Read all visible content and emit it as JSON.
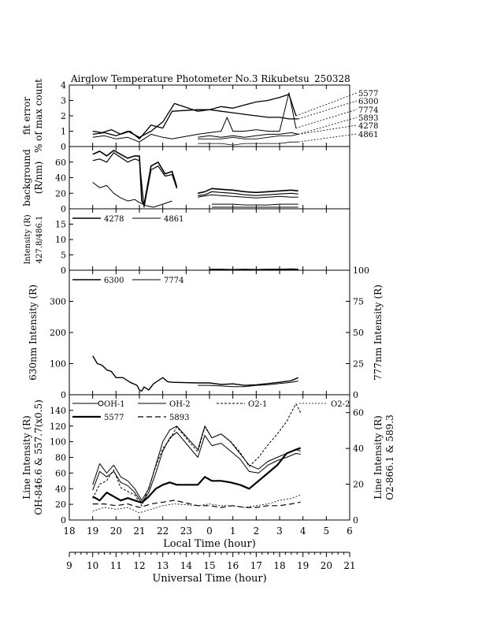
{
  "title": {
    "main": "Airglow Temperature Photometer No.3  Rikubetsu",
    "date": "250328"
  },
  "chart_data": [
    {
      "id": "fit",
      "type": "line",
      "ylabel": [
        "fit error",
        "% of max count"
      ],
      "ylim": [
        0,
        4
      ],
      "yticks": [
        0,
        1,
        2,
        3,
        4
      ],
      "legend": [
        "5577",
        "6300",
        "7774",
        "5893",
        "4278",
        "4861"
      ],
      "series": [
        {
          "name": "5577",
          "width": 1.3,
          "dash": "",
          "x": [
            19.0,
            19.4,
            19.8,
            20.2,
            20.6,
            21.0,
            21.5,
            22.0,
            22.4,
            23.5,
            0.0,
            0.5,
            1.0,
            1.5,
            2.0,
            2.5,
            3.0,
            3.4,
            3.7
          ],
          "y": [
            1.0,
            0.9,
            1.1,
            0.8,
            1.0,
            0.5,
            1.4,
            1.2,
            2.3,
            2.4,
            2.4,
            2.6,
            2.5,
            2.7,
            2.9,
            3.0,
            3.2,
            3.4,
            2.0
          ]
        },
        {
          "name": "6300",
          "width": 1.3,
          "dash": "",
          "x": [
            19.0,
            19.5,
            20.0,
            20.5,
            21.0,
            21.5,
            22.0,
            22.5,
            23.5,
            0.0,
            0.5,
            1.0,
            1.5,
            2.0,
            2.5,
            3.0,
            3.4,
            3.8
          ],
          "y": [
            0.8,
            0.9,
            0.7,
            1.0,
            0.6,
            1.0,
            1.6,
            2.8,
            2.3,
            2.4,
            2.3,
            2.2,
            2.1,
            2.0,
            1.9,
            1.9,
            1.8,
            1.8
          ]
        },
        {
          "name": "7774",
          "width": 1.0,
          "dash": "",
          "x": [
            19.0,
            19.5,
            20.0,
            20.5,
            21.0,
            21.5,
            22.0,
            22.4,
            23.5,
            0.0,
            0.5,
            0.75,
            1.0,
            1.5,
            2.0,
            2.5,
            3.0,
            3.4,
            3.7
          ],
          "y": [
            0.6,
            0.7,
            0.5,
            0.6,
            0.3,
            0.8,
            0.6,
            0.5,
            0.8,
            0.9,
            1.0,
            1.9,
            1.0,
            1.0,
            1.1,
            1.0,
            1.0,
            3.5,
            1.2
          ]
        },
        {
          "name": "5893",
          "width": 1.0,
          "dash": "",
          "x": [
            23.5,
            0.0,
            0.5,
            1.0,
            1.5,
            2.0,
            2.5,
            3.0,
            3.5,
            3.8
          ],
          "y": [
            0.6,
            0.7,
            0.6,
            0.7,
            0.6,
            0.7,
            0.8,
            0.8,
            0.9,
            0.8
          ]
        },
        {
          "name": "4278",
          "width": 0.8,
          "dash": "",
          "x": [
            23.5,
            0.0,
            0.5,
            1.0,
            1.5,
            2.0,
            2.5,
            3.0,
            3.5,
            3.8
          ],
          "y": [
            0.5,
            0.5,
            0.5,
            0.6,
            0.5,
            0.5,
            0.6,
            0.7,
            0.7,
            0.8
          ]
        },
        {
          "name": "4861",
          "width": 0.8,
          "dash": "",
          "x": [
            23.5,
            0.0,
            0.5,
            1.0,
            1.5,
            2.0,
            2.5,
            3.0,
            3.5,
            3.8
          ],
          "y": [
            0.2,
            0.2,
            0.2,
            0.1,
            0.2,
            0.2,
            0.2,
            0.2,
            0.3,
            0.3
          ]
        }
      ]
    },
    {
      "id": "bg",
      "type": "line",
      "ylabel": [
        "background",
        "(R/nm)"
      ],
      "ylim": [
        0,
        80
      ],
      "yticks": [
        0,
        20,
        40,
        60
      ],
      "series": [
        {
          "name": "",
          "width": 1.6,
          "dash": "",
          "x": [
            19.0,
            19.3,
            19.6,
            19.9,
            20.2,
            20.5,
            20.8,
            21.0,
            21.1,
            21.2,
            21.5,
            21.8,
            22.1,
            22.4,
            22.6
          ],
          "y": [
            70,
            74,
            68,
            75,
            70,
            65,
            68,
            68,
            10,
            5,
            55,
            60,
            45,
            48,
            28
          ]
        },
        {
          "name": "",
          "width": 1.2,
          "dash": "",
          "x": [
            19.0,
            19.3,
            19.6,
            19.9,
            20.2,
            20.5,
            20.8,
            21.0,
            21.2,
            21.5,
            21.8,
            22.1,
            22.4,
            22.6
          ],
          "y": [
            62,
            64,
            60,
            72,
            66,
            60,
            64,
            62,
            2,
            50,
            55,
            42,
            44,
            26
          ]
        },
        {
          "name": "",
          "width": 1.0,
          "dash": "",
          "x": [
            19.0,
            19.3,
            19.6,
            19.9,
            20.2,
            20.5,
            20.8,
            21.0,
            21.3,
            21.6,
            22.0,
            22.4
          ],
          "y": [
            34,
            27,
            30,
            20,
            14,
            10,
            12,
            8,
            4,
            2,
            6,
            10
          ]
        },
        {
          "name": "",
          "width": 1.6,
          "dash": "",
          "x": [
            23.5,
            23.8,
            0.1,
            0.5,
            1.0,
            1.5,
            2.0,
            2.5,
            3.0,
            3.5,
            3.8
          ],
          "y": [
            20,
            22,
            26,
            25,
            24,
            22,
            21,
            22,
            23,
            24,
            23
          ]
        },
        {
          "name": "",
          "width": 1.2,
          "dash": "",
          "x": [
            23.5,
            23.8,
            0.1,
            0.5,
            1.0,
            1.5,
            2.0,
            2.5,
            3.0,
            3.5,
            3.8
          ],
          "y": [
            17,
            18,
            22,
            21,
            20,
            18,
            17,
            18,
            19,
            20,
            19
          ]
        },
        {
          "name": "",
          "width": 1.0,
          "dash": "",
          "x": [
            23.5,
            0.1,
            0.5,
            1.0,
            1.5,
            2.0,
            2.5,
            3.0,
            3.5,
            3.8
          ],
          "y": [
            15,
            18,
            17,
            16,
            15,
            14,
            15,
            16,
            15,
            15
          ]
        },
        {
          "name": "",
          "width": 1.0,
          "dash": "",
          "x": [
            0.1,
            0.5,
            1.0,
            1.5,
            2.0,
            2.5,
            3.0,
            3.5,
            3.8
          ],
          "y": [
            6,
            6,
            6,
            5,
            5,
            5,
            6,
            6,
            6
          ]
        },
        {
          "name": "",
          "width": 1.0,
          "dash": "",
          "x": [
            0.1,
            0.5,
            1.0,
            1.5,
            2.0,
            2.5,
            3.0,
            3.5,
            3.8
          ],
          "y": [
            2,
            2,
            2,
            2,
            2,
            2,
            2,
            2,
            2
          ]
        }
      ]
    },
    {
      "id": "int4278",
      "type": "line",
      "ylabel": [
        "Intensity (R)",
        "427.8/486.1"
      ],
      "ylim": [
        0,
        20
      ],
      "yticks": [
        0,
        5,
        10,
        15
      ],
      "legend": [
        "4278",
        "4861"
      ],
      "series": [
        {
          "name": "4278",
          "width": 1.4,
          "dash": "",
          "x": [
            0.0,
            0.5,
            1.0,
            1.5,
            2.0,
            2.5,
            3.0,
            3.5,
            3.8
          ],
          "y": [
            0.3,
            0.3,
            0.2,
            0.3,
            0.2,
            0.3,
            0.3,
            0.4,
            0.3
          ]
        },
        {
          "name": "4861",
          "width": 1.0,
          "dash": "",
          "x": [
            0.0,
            0.5,
            1.0,
            1.5,
            2.0,
            2.5,
            3.0,
            3.5,
            3.8
          ],
          "y": [
            0.1,
            0.1,
            0.1,
            0.1,
            0.1,
            0.1,
            0.1,
            0.1,
            0.1
          ]
        }
      ]
    },
    {
      "id": "int630",
      "type": "line",
      "ylabel": [
        "630nm Intensity (R)"
      ],
      "ylim": [
        0,
        400
      ],
      "yticks": [
        0,
        100,
        200,
        300
      ],
      "y2label": "777nm Intensity (R)",
      "y2lim": [
        0,
        100
      ],
      "y2ticks": [
        0,
        25,
        50,
        75,
        100
      ],
      "legend": [
        "6300",
        "7774"
      ],
      "series": [
        {
          "name": "6300",
          "width": 1.4,
          "dash": "",
          "x": [
            19.0,
            19.2,
            19.4,
            19.6,
            19.8,
            20.0,
            20.3,
            20.6,
            20.9,
            21.0,
            21.1,
            21.2,
            21.4,
            21.6,
            21.8,
            22.0,
            22.2,
            22.4,
            23.5,
            0.0,
            0.5,
            1.0,
            1.5,
            2.0,
            2.5,
            3.0,
            3.5,
            3.8
          ],
          "y": [
            125,
            100,
            95,
            80,
            75,
            55,
            55,
            40,
            30,
            15,
            12,
            25,
            15,
            35,
            45,
            55,
            42,
            40,
            38,
            38,
            33,
            35,
            30,
            32,
            36,
            40,
            45,
            55
          ]
        },
        {
          "name": "7774",
          "width": 1.0,
          "dash": "",
          "x": [
            23.5,
            0.0,
            0.5,
            1.0,
            1.5,
            2.0,
            2.5,
            3.0,
            3.5,
            3.8
          ],
          "y": [
            7.5,
            7.5,
            7.0,
            6.5,
            6.5,
            7.5,
            8.0,
            9.0,
            10.0,
            11.0
          ]
        }
      ]
    },
    {
      "id": "line",
      "type": "line",
      "ylabel": [
        "Line Intensity (R)",
        "OH-846.6 & 557.7(x0.5)"
      ],
      "ylim": [
        0,
        160
      ],
      "yticks": [
        0,
        20,
        40,
        60,
        80,
        100,
        120,
        140
      ],
      "y2label": "Line Intensity (R)",
      "y2label2": "O2-866.1 & 589.3",
      "y2lim": [
        0,
        70
      ],
      "y2ticks": [
        0,
        20,
        40,
        60
      ],
      "legend": [
        "OH-1",
        "OH-2",
        "O2-1",
        "O2-2",
        "5577",
        "5893"
      ],
      "series": [
        {
          "name": "OH-1",
          "width": 1.0,
          "dash": "",
          "x": [
            19.0,
            19.3,
            19.6,
            19.9,
            20.2,
            20.5,
            20.8,
            21.1,
            21.4,
            21.7,
            22.0,
            22.3,
            22.6,
            23.5,
            23.8,
            0.1,
            0.5,
            0.9,
            1.3,
            1.7,
            2.1,
            2.5,
            2.9,
            3.3,
            3.7,
            3.9
          ],
          "y": [
            45,
            72,
            60,
            70,
            55,
            50,
            40,
            25,
            40,
            70,
            100,
            115,
            120,
            90,
            120,
            105,
            110,
            100,
            85,
            70,
            65,
            75,
            80,
            85,
            90,
            88
          ]
        },
        {
          "name": "OH-2",
          "width": 1.0,
          "dash": "",
          "x": [
            19.0,
            19.3,
            19.6,
            19.9,
            20.2,
            20.5,
            20.8,
            21.1,
            21.4,
            21.7,
            22.0,
            22.3,
            22.6,
            23.5,
            23.8,
            0.1,
            0.5,
            0.9,
            1.3,
            1.7,
            2.1,
            2.5,
            2.9,
            3.3,
            3.7,
            3.9
          ],
          "y": [
            38,
            62,
            55,
            62,
            48,
            44,
            35,
            22,
            35,
            60,
            88,
            105,
            112,
            80,
            108,
            95,
            98,
            88,
            78,
            62,
            60,
            70,
            76,
            80,
            85,
            84
          ]
        },
        {
          "name": "O2-1",
          "width": 1.0,
          "dash": "3,2",
          "x": [
            19.0,
            19.3,
            19.6,
            19.9,
            20.2,
            20.5,
            20.8,
            21.1,
            21.4,
            21.7,
            22.0,
            22.3,
            22.6,
            23.5,
            23.8,
            0.1,
            0.5,
            0.9,
            1.3,
            1.7,
            2.1,
            2.5,
            2.9,
            3.3,
            3.5,
            3.7,
            3.9
          ],
          "y": [
            12,
            20,
            22,
            28,
            18,
            16,
            14,
            8,
            18,
            30,
            40,
            45,
            52,
            38,
            52,
            46,
            48,
            44,
            38,
            30,
            35,
            42,
            48,
            55,
            60,
            65,
            60
          ]
        },
        {
          "name": "O2-2",
          "width": 0.8,
          "dash": "2,2",
          "x": [
            19.0,
            19.5,
            20.0,
            20.5,
            21.0,
            21.5,
            22.0,
            22.5,
            23.5,
            0.0,
            0.5,
            1.0,
            1.5,
            2.0,
            2.5,
            3.0,
            3.5,
            3.9
          ],
          "y": [
            5,
            7,
            6,
            7,
            4,
            6,
            8,
            9,
            8,
            9,
            8,
            8,
            7,
            8,
            9,
            11,
            12,
            14
          ]
        },
        {
          "name": "5577",
          "width": 2.2,
          "dash": "",
          "x": [
            19.0,
            19.3,
            19.6,
            19.9,
            20.2,
            20.5,
            20.8,
            21.1,
            21.4,
            21.7,
            22.0,
            22.3,
            22.6,
            23.5,
            23.8,
            0.1,
            0.5,
            0.9,
            1.3,
            1.7,
            2.1,
            2.5,
            2.9,
            3.3,
            3.7,
            3.9
          ],
          "y": [
            30,
            25,
            35,
            30,
            25,
            28,
            25,
            22,
            30,
            40,
            45,
            48,
            45,
            45,
            55,
            50,
            50,
            48,
            45,
            40,
            50,
            60,
            70,
            85,
            90,
            92
          ]
        },
        {
          "name": "5893",
          "width": 1.2,
          "dash": "7,4",
          "x": [
            19.0,
            19.5,
            20.0,
            20.5,
            21.0,
            21.5,
            22.0,
            22.5,
            23.5,
            0.0,
            0.5,
            1.0,
            1.5,
            2.0,
            2.5,
            3.0,
            3.5,
            3.9
          ],
          "y": [
            9,
            9,
            8,
            9,
            7,
            9,
            10,
            11,
            8,
            8,
            7,
            8,
            7,
            7,
            8,
            8,
            9,
            10
          ]
        }
      ]
    }
  ],
  "axes": {
    "local_time": {
      "label": "Local Time (hour)",
      "ticks": [
        "18",
        "19",
        "20",
        "21",
        "22",
        "23",
        "0",
        "1",
        "2",
        "3",
        "4",
        "5",
        "6"
      ]
    },
    "universal_time": {
      "label": "Universal Time (hour)",
      "ticks": [
        "9",
        "10",
        "11",
        "12",
        "13",
        "14",
        "15",
        "16",
        "17",
        "18",
        "19",
        "20",
        "21"
      ]
    }
  }
}
